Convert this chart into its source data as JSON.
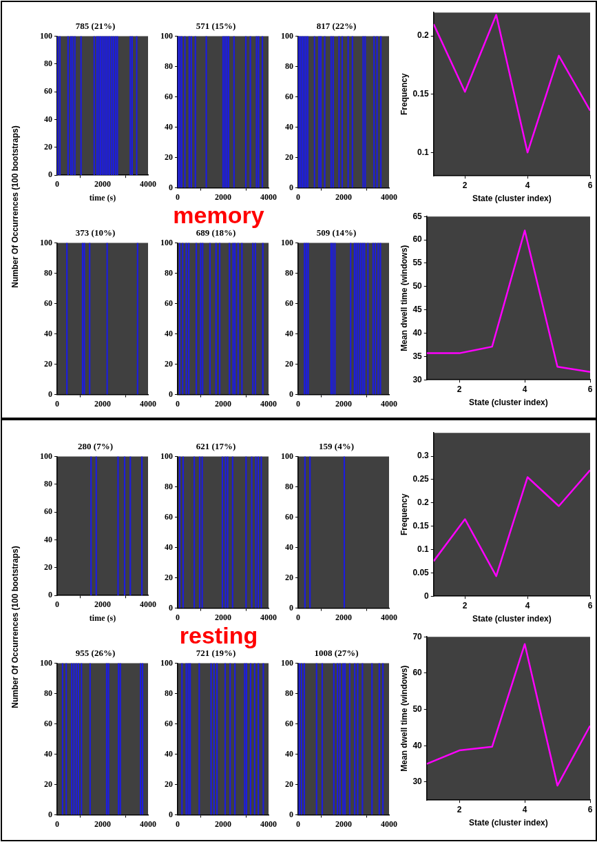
{
  "chart_data": [
    {
      "type": "bar",
      "title": "785 (21%)",
      "ylabel": "Number Of Occurrences (100 bootstraps)",
      "xlabel": "time (s)",
      "color": "#1c1ce0",
      "xlim": [
        0,
        4000
      ],
      "xticks": [
        0,
        2000,
        4000
      ],
      "ylim": [
        0,
        100
      ],
      "yticks": [
        0,
        20,
        40,
        60,
        80,
        100
      ],
      "x": [
        20,
        120,
        480,
        600,
        680,
        780,
        1050,
        1630,
        1750,
        1830,
        1910,
        1990,
        2070,
        2150,
        2230,
        2310,
        2400,
        2480,
        2570,
        2650,
        3220,
        3300,
        3500
      ],
      "values": [
        100,
        100,
        100,
        100,
        100,
        100,
        100,
        100,
        100,
        100,
        100,
        100,
        100,
        100,
        100,
        100,
        100,
        100,
        100,
        100,
        100,
        100,
        100
      ]
    },
    {
      "type": "bar",
      "title": "571 (15%)",
      "annotations": [
        "memory"
      ],
      "color": "#1c1ce0",
      "xlim": [
        0,
        4000
      ],
      "xticks": [
        0,
        2000,
        4000
      ],
      "ylim": [
        0,
        100
      ],
      "yticks": [
        0,
        20,
        40,
        60,
        80,
        100
      ],
      "x": [
        20,
        100,
        180,
        320,
        510,
        600,
        780,
        1260,
        2000,
        2080,
        2160,
        2240,
        2480,
        3000,
        3200,
        3470,
        3560,
        3730
      ],
      "values": [
        100,
        100,
        100,
        100,
        100,
        100,
        100,
        100,
        100,
        100,
        100,
        100,
        100,
        100,
        100,
        100,
        100,
        100
      ]
    },
    {
      "type": "bar",
      "title": "817 (22%)",
      "color": "#1c1ce0",
      "xlim": [
        0,
        4000
      ],
      "xticks": [
        0,
        2000,
        4000
      ],
      "ylim": [
        0,
        100
      ],
      "yticks": [
        0,
        20,
        40,
        60,
        80,
        100
      ],
      "x": [
        20,
        100,
        180,
        260,
        340,
        420,
        720,
        920,
        1000,
        1170,
        1450,
        1540,
        1800,
        1940,
        2200,
        2390,
        2860,
        2950,
        3340,
        3470,
        3640
      ],
      "values": [
        100,
        100,
        100,
        100,
        100,
        100,
        100,
        100,
        100,
        100,
        100,
        100,
        100,
        100,
        100,
        100,
        100,
        100,
        100,
        100,
        100
      ]
    },
    {
      "type": "line",
      "ylabel": "Frequency",
      "xlabel": "State (cluster index)",
      "color": "#ff00ff",
      "marker": "none",
      "line_style": "solid",
      "xlim": [
        1,
        6
      ],
      "xticks": [
        2,
        4,
        6
      ],
      "ylim": [
        0.08,
        0.22
      ],
      "yticks": [
        0.1,
        0.15,
        0.2
      ],
      "x": [
        1,
        2,
        3,
        4,
        5,
        6
      ],
      "values": [
        0.21,
        0.152,
        0.218,
        0.1,
        0.183,
        0.136
      ]
    },
    {
      "type": "bar",
      "title": "373 (10%)",
      "color": "#1c1ce0",
      "xlim": [
        0,
        4000
      ],
      "xticks": [
        0,
        2000,
        4000
      ],
      "ylim": [
        0,
        100
      ],
      "yticks": [
        0,
        20,
        40,
        60,
        80,
        100
      ],
      "x": [
        430,
        1120,
        1200,
        1430,
        2200,
        3540
      ],
      "values": [
        100,
        100,
        100,
        100,
        100,
        100
      ]
    },
    {
      "type": "bar",
      "title": "689 (18%)",
      "color": "#1c1ce0",
      "xlim": [
        0,
        4000
      ],
      "xticks": [
        0,
        2000,
        4000
      ],
      "ylim": [
        0,
        100
      ],
      "yticks": [
        0,
        20,
        40,
        60,
        80,
        100
      ],
      "x": [
        90,
        220,
        380,
        490,
        820,
        1010,
        1100,
        1420,
        1690,
        1850,
        2280,
        2440,
        2520,
        2660,
        2830,
        3310,
        3420,
        3750
      ],
      "values": [
        100,
        100,
        100,
        100,
        100,
        100,
        100,
        100,
        100,
        100,
        100,
        100,
        100,
        100,
        100,
        100,
        100,
        100
      ]
    },
    {
      "type": "bar",
      "title": "509 (14%)",
      "color": "#1c1ce0",
      "xlim": [
        0,
        4000
      ],
      "xticks": [
        0,
        2000,
        4000
      ],
      "ylim": [
        0,
        100
      ],
      "yticks": [
        0,
        20,
        40,
        60,
        80,
        100
      ],
      "x": [
        280,
        360,
        440,
        1450,
        1530,
        1620,
        2310,
        2480,
        2560,
        2650,
        2750,
        2840,
        2920,
        3070,
        3300,
        3400,
        3520,
        3620
      ],
      "values": [
        100,
        100,
        100,
        100,
        100,
        100,
        100,
        100,
        100,
        100,
        100,
        100,
        100,
        100,
        100,
        100,
        100,
        100
      ]
    },
    {
      "type": "line",
      "ylabel": "Mean dwell time (windows)",
      "xlabel": "State (cluster index)",
      "color": "#ff00ff",
      "marker": "none",
      "line_style": "solid",
      "xlim": [
        1,
        6
      ],
      "xticks": [
        2,
        4,
        6
      ],
      "ylim": [
        30,
        65
      ],
      "yticks": [
        30,
        35,
        40,
        45,
        50,
        55,
        60,
        65
      ],
      "x": [
        1,
        2,
        3,
        4,
        5,
        6
      ],
      "values": [
        35.7,
        35.7,
        37.1,
        62,
        32.8,
        31.7
      ]
    },
    {
      "type": "bar",
      "title": "280 (7%)",
      "ylabel": "Number Of Occurrences (100 bootstraps)",
      "xlabel": "time (s)",
      "color": "#1c1ce0",
      "xlim": [
        0,
        4000
      ],
      "xticks": [
        0,
        2000,
        4000
      ],
      "ylim": [
        0,
        100
      ],
      "yticks": [
        0,
        20,
        40,
        60,
        80,
        100
      ],
      "x": [
        1490,
        1720,
        2680,
        2970,
        3220,
        3730
      ],
      "values": [
        100,
        100,
        100,
        100,
        100,
        100
      ]
    },
    {
      "type": "bar",
      "title": "621 (17%)",
      "annotations": [
        "resting"
      ],
      "color": "#1c1ce0",
      "xlim": [
        0,
        4000
      ],
      "xticks": [
        0,
        2000,
        4000
      ],
      "ylim": [
        0,
        100
      ],
      "yticks": [
        0,
        20,
        40,
        60,
        80,
        100
      ],
      "x": [
        90,
        240,
        730,
        970,
        1080,
        1970,
        2100,
        2200,
        2420,
        3010,
        3260,
        3440,
        3550,
        3680
      ],
      "values": [
        100,
        100,
        100,
        100,
        100,
        100,
        100,
        100,
        100,
        100,
        100,
        100,
        100,
        100
      ]
    },
    {
      "type": "bar",
      "title": "159 (4%)",
      "color": "#1c1ce0",
      "xlim": [
        0,
        4000
      ],
      "xticks": [
        0,
        2000,
        4000
      ],
      "ylim": [
        0,
        100
      ],
      "yticks": [
        0,
        20,
        40,
        60,
        80,
        100
      ],
      "x": [
        300,
        520,
        2030
      ],
      "values": [
        100,
        100,
        100
      ]
    },
    {
      "type": "line",
      "ylabel": "Frequency",
      "xlabel": "State (cluster index)",
      "color": "#ff00ff",
      "marker": "none",
      "line_style": "solid",
      "xlim": [
        1,
        6
      ],
      "xticks": [
        2,
        4,
        6
      ],
      "ylim": [
        0,
        0.35
      ],
      "yticks": [
        0,
        0.05,
        0.1,
        0.15,
        0.2,
        0.25,
        0.3
      ],
      "x": [
        1,
        2,
        3,
        4,
        5,
        6
      ],
      "values": [
        0.075,
        0.165,
        0.043,
        0.255,
        0.193,
        0.27
      ]
    },
    {
      "type": "bar",
      "title": "955 (26%)",
      "color": "#1c1ce0",
      "xlim": [
        0,
        4000
      ],
      "xticks": [
        0,
        2000,
        4000
      ],
      "ylim": [
        0,
        100
      ],
      "yticks": [
        0,
        20,
        40,
        60,
        80,
        100
      ],
      "x": [
        240,
        400,
        640,
        740,
        840,
        940,
        1070,
        1450,
        2180,
        2260,
        2700,
        2780,
        3670,
        3760
      ],
      "values": [
        100,
        100,
        100,
        100,
        100,
        100,
        100,
        100,
        100,
        100,
        100,
        100,
        100,
        100
      ]
    },
    {
      "type": "bar",
      "title": "721 (19%)",
      "color": "#1c1ce0",
      "xlim": [
        0,
        4000
      ],
      "xticks": [
        0,
        2000,
        4000
      ],
      "ylim": [
        0,
        100
      ],
      "yticks": [
        0,
        20,
        40,
        60,
        80,
        100
      ],
      "x": [
        190,
        380,
        470,
        550,
        950,
        1470,
        1600,
        1730,
        2090,
        2310,
        2520,
        2950,
        3030,
        3210,
        3390,
        3550,
        3770
      ],
      "values": [
        100,
        100,
        100,
        100,
        100,
        100,
        100,
        100,
        100,
        100,
        100,
        100,
        100,
        100,
        100,
        100,
        100
      ]
    },
    {
      "type": "bar",
      "title": "1008 (27%)",
      "color": "#1c1ce0",
      "xlim": [
        0,
        4000
      ],
      "xticks": [
        0,
        2000,
        4000
      ],
      "ylim": [
        0,
        100
      ],
      "yticks": [
        0,
        20,
        40,
        60,
        80,
        100
      ],
      "x": [
        50,
        150,
        270,
        810,
        1060,
        1570,
        1730,
        1840,
        1980,
        2060,
        2270,
        2490,
        2620,
        2830,
        3250,
        3570,
        3730
      ],
      "values": [
        100,
        100,
        100,
        100,
        100,
        100,
        100,
        100,
        100,
        100,
        100,
        100,
        100,
        100,
        100,
        100,
        100
      ]
    },
    {
      "type": "line",
      "ylabel": "Mean dwell time (windows)",
      "xlabel": "State (cluster index)",
      "color": "#ff00ff",
      "marker": "none",
      "line_style": "solid",
      "xlim": [
        1,
        6
      ],
      "xticks": [
        2,
        4,
        6
      ],
      "ylim": [
        25,
        70
      ],
      "yticks": [
        30,
        40,
        50,
        60,
        70
      ],
      "x": [
        1,
        2,
        3,
        4,
        5,
        6
      ],
      "values": [
        35,
        38.7,
        39.7,
        68,
        29,
        45.5
      ]
    }
  ]
}
